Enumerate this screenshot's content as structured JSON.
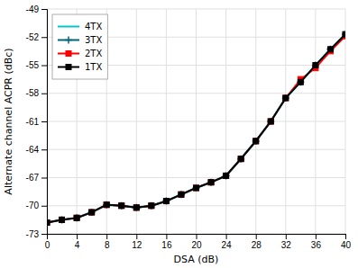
{
  "chart_data": {
    "type": "line",
    "xlabel": "DSA (dB)",
    "ylabel": "Alternate channel ACPR (dBc)",
    "x": [
      0,
      2,
      4,
      6,
      8,
      10,
      12,
      14,
      16,
      18,
      20,
      22,
      24,
      26,
      28,
      30,
      32,
      34,
      36,
      38,
      40
    ],
    "series": [
      {
        "name": "4TX",
        "color": "#00c8c8",
        "marker": "none",
        "line_style": "solid",
        "values": [
          -71.8,
          -71.5,
          -71.3,
          -70.7,
          -69.9,
          -70.0,
          -70.2,
          -70.0,
          -69.5,
          -68.8,
          -68.1,
          -67.5,
          -66.8,
          -65.0,
          -63.1,
          -61.0,
          -58.5,
          -56.8,
          -55.0,
          -53.3,
          -51.7
        ]
      },
      {
        "name": "3TX",
        "color": "#006878",
        "marker": "plus",
        "line_style": "solid",
        "values": [
          -71.8,
          -71.5,
          -71.3,
          -70.7,
          -69.9,
          -70.0,
          -70.2,
          -70.0,
          -69.5,
          -68.8,
          -68.1,
          -67.5,
          -66.8,
          -65.0,
          -63.1,
          -61.0,
          -58.5,
          -56.8,
          -55.0,
          -53.3,
          -51.7
        ]
      },
      {
        "name": "2TX",
        "color": "#ff0000",
        "marker": "square",
        "line_style": "solid",
        "values": [
          -71.8,
          -71.5,
          -71.3,
          -70.7,
          -69.9,
          -70.0,
          -70.2,
          -70.0,
          -69.5,
          -68.8,
          -68.1,
          -67.5,
          -66.8,
          -65.0,
          -63.1,
          -61.0,
          -58.5,
          -56.5,
          -55.3,
          -53.5,
          -51.9
        ]
      },
      {
        "name": "1TX",
        "color": "#000000",
        "marker": "square",
        "line_style": "solid",
        "values": [
          -71.8,
          -71.5,
          -71.3,
          -70.7,
          -69.9,
          -70.0,
          -70.2,
          -70.0,
          -69.5,
          -68.8,
          -68.1,
          -67.5,
          -66.8,
          -65.0,
          -63.1,
          -61.0,
          -58.5,
          -56.8,
          -55.0,
          -53.3,
          -51.7
        ]
      }
    ],
    "xlim": [
      0,
      40
    ],
    "ylim": [
      -73,
      -49
    ],
    "xticks": [
      0,
      4,
      8,
      12,
      16,
      20,
      24,
      28,
      32,
      36,
      40
    ],
    "yticks": [
      -73,
      -70,
      -67,
      -64,
      -61,
      -58,
      -55,
      -52,
      -49
    ],
    "grid": true,
    "legend": "upper left"
  }
}
